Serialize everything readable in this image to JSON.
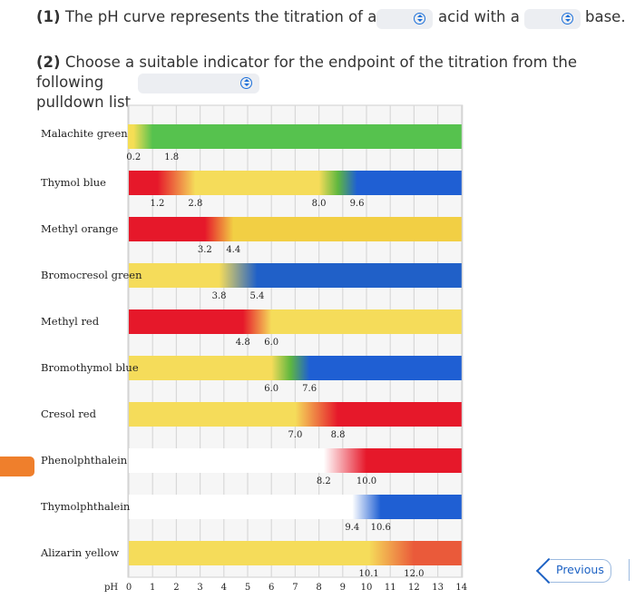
{
  "question": {
    "q1_num": "(1)",
    "q1_text_a": "The pH curve represents the titration of a",
    "q1_text_b": "acid with a",
    "q1_text_c": "base.",
    "q2_num": "(2)",
    "q2_line1": "Choose a suitable indicator for the endpoint of the titration from the following",
    "q2_line2": "pulldown list."
  },
  "nav": {
    "previous_label": "Previous"
  },
  "chart_data": {
    "type": "table",
    "x_axis_label": "pH",
    "ticks": [
      "0",
      "1",
      "2",
      "3",
      "4",
      "5",
      "6",
      "7",
      "8",
      "9",
      "10",
      "11",
      "12",
      "13",
      "14"
    ],
    "indicators": [
      {
        "name": "Malachite green",
        "low": 0.2,
        "high": 1.8,
        "low_label": "0.2",
        "high_label": "1.8",
        "colors": [
          "#f5de55",
          "#56c24e",
          "#56c24e"
        ]
      },
      {
        "name": "Thymol blue",
        "low": 1.2,
        "high": 2.8,
        "low_label": "1.2",
        "high_label": "2.8",
        "colors": [
          "#e6182a",
          "#f5dc5a",
          "#f5dc5a",
          "#5fb73f",
          "#1f5fd3"
        ],
        "low2": 8.0,
        "high2": 9.6,
        "low2_label": "8.0",
        "high2_label": "9.6"
      },
      {
        "name": "Methyl orange",
        "low": 3.2,
        "high": 4.4,
        "low_label": "3.2",
        "high_label": "4.4",
        "colors": [
          "#e6182a",
          "#f2cf44"
        ]
      },
      {
        "name": "Bromocresol green",
        "low": 3.8,
        "high": 5.4,
        "low_label": "3.8",
        "high_label": "5.4",
        "colors": [
          "#f5dc5a",
          "#2060c8"
        ]
      },
      {
        "name": "Methyl red",
        "low": 4.8,
        "high": 6.0,
        "low_label": "4.8",
        "high_label": "6.0",
        "colors": [
          "#e6182a",
          "#f5dc5a"
        ]
      },
      {
        "name": "Bromothymol blue",
        "low": 6.0,
        "high": 7.6,
        "low_label": "6.0",
        "high_label": "7.6",
        "colors": [
          "#f5dc5a",
          "#5fb73f",
          "#1f5fd3"
        ]
      },
      {
        "name": "Cresol red",
        "low": 7.0,
        "high": 8.8,
        "low_label": "7.0",
        "high_label": "8.8",
        "colors": [
          "#f5dc5a",
          "#e6182a"
        ]
      },
      {
        "name": "Phenolphthalein",
        "low": 8.2,
        "high": 10.0,
        "low_label": "8.2",
        "high_label": "10.0",
        "colors": [
          "#ffffff",
          "#e6182a"
        ]
      },
      {
        "name": "Thymolphthalein",
        "low": 9.4,
        "high": 10.6,
        "low_label": "9.4",
        "high_label": "10.6",
        "colors": [
          "#ffffff",
          "#1f5fd3"
        ]
      },
      {
        "name": "Alizarin yellow",
        "low": 10.1,
        "high": 12.0,
        "low_label": "10.1",
        "high_label": "12.0",
        "colors": [
          "#f5dc5a",
          "#ea5a3a"
        ]
      }
    ]
  }
}
